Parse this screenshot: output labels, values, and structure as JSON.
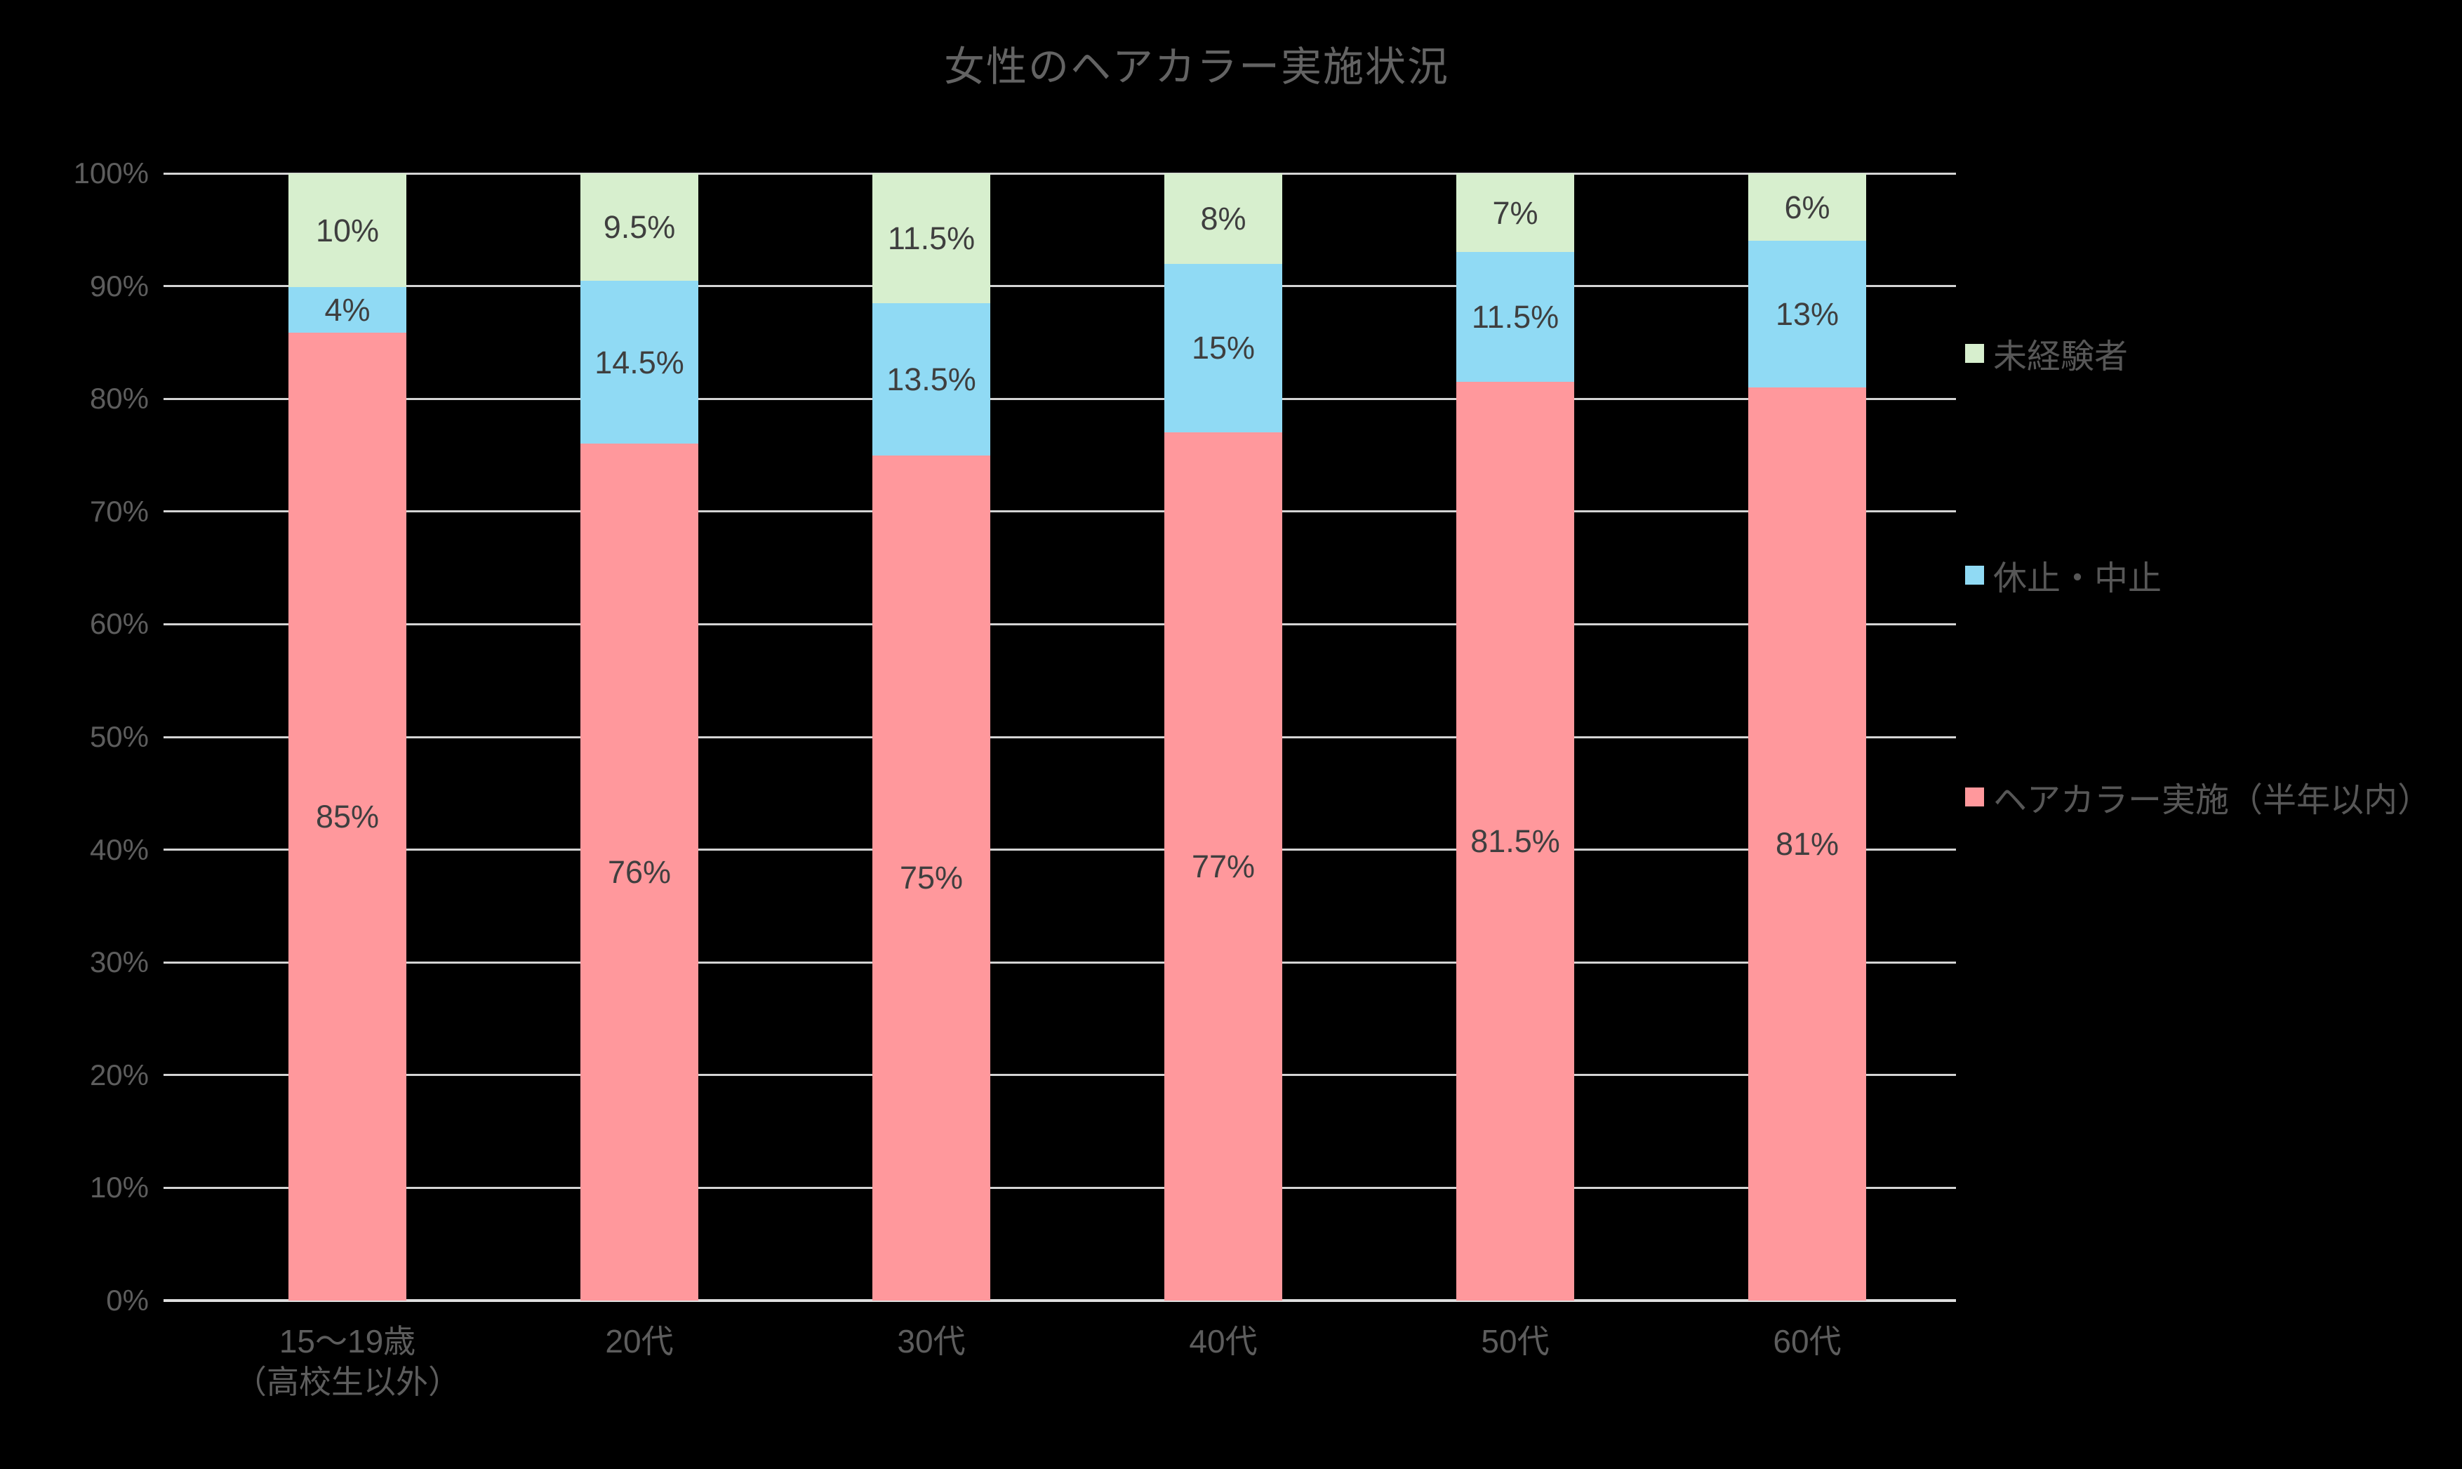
{
  "title": "女性のヘアカラー実施状況",
  "theme": {
    "background": "#000000",
    "axis_text_color": "#5d5d5d",
    "title_color": "#636363",
    "grid_color": "#d4d4d4",
    "data_label_color": "#3f3f3f",
    "legend_text_color": "#575757"
  },
  "chart_data": {
    "type": "bar",
    "stacked": true,
    "percent_stacked_to_100": true,
    "title": "女性のヘアカラー実施状況",
    "categories": [
      "15〜19歳\n（高校生以外）",
      "20代",
      "30代",
      "40代",
      "50代",
      "60代"
    ],
    "series": [
      {
        "name": "ヘアカラー実施（半年以内）",
        "color": "#ff989c",
        "values": [
          85,
          76,
          75,
          77,
          81.5,
          81
        ],
        "labels": [
          "85%",
          "76%",
          "75%",
          "77%",
          "81.5%",
          "81%"
        ]
      },
      {
        "name": "休止・中止",
        "color": "#90daf4",
        "values": [
          4,
          14.5,
          13.5,
          15,
          11.5,
          13
        ],
        "labels": [
          "4%",
          "14.5%",
          "13.5%",
          "15%",
          "11.5%",
          "13%"
        ]
      },
      {
        "name": "未経験者",
        "color": "#d7efce",
        "values": [
          10,
          9.5,
          11.5,
          8,
          7,
          6
        ],
        "labels": [
          "10%",
          "9.5%",
          "11.5%",
          "8%",
          "7%",
          "6%"
        ]
      }
    ],
    "y_axis": {
      "min": 0,
      "max": 100,
      "step": 10,
      "tick_labels": [
        "0%",
        "10%",
        "20%",
        "30%",
        "40%",
        "50%",
        "60%",
        "70%",
        "80%",
        "90%",
        "100%"
      ]
    },
    "x_axis": {
      "tick_labels": [
        "15〜19歳\n（高校生以外）",
        "20代",
        "30代",
        "40代",
        "50代",
        "60代"
      ]
    },
    "grid": true,
    "legend": {
      "position": "right",
      "order_top_to_bottom": [
        "未経験者",
        "休止・中止",
        "ヘアカラー実施（半年以内）"
      ]
    }
  }
}
